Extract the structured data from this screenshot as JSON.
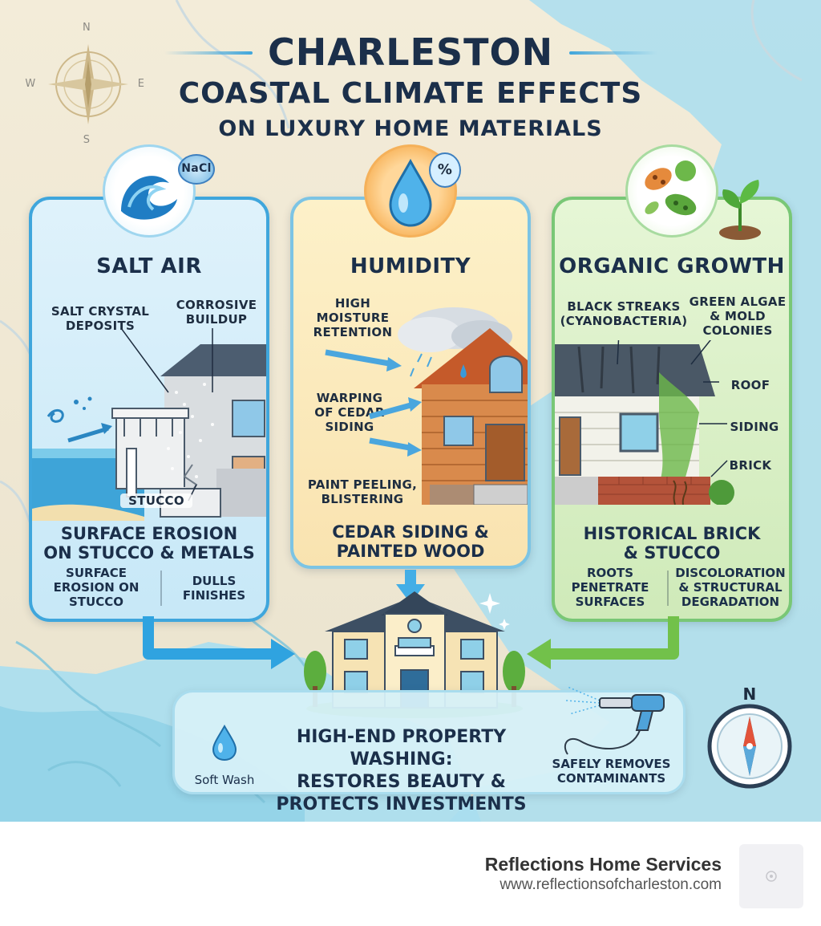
{
  "title": {
    "line1": "CHARLESTON",
    "line2": "COASTAL CLIMATE EFFECTS",
    "line3": "ON LUXURY HOME MATERIALS"
  },
  "compass_rose": {
    "n": "N",
    "s": "S",
    "e": "E",
    "w": "W"
  },
  "cards": {
    "salt": {
      "title": "SALT AIR",
      "icon_text": "NaCl",
      "label_crystal": "SALT CRYSTAL\nDEPOSITS",
      "label_corrosive": "CORROSIVE\nBUILDUP",
      "label_stucco": "STUCCO",
      "bottom": "SURFACE EROSION\nON STUCCO & METALS",
      "sub_left": "SURFACE\nEROSION ON\nSTUCCO",
      "sub_right": "DULLS\nFINISHES"
    },
    "humidity": {
      "title": "HUMIDITY",
      "icon_text": "%",
      "label_moisture": "HIGH\nMOISTURE\nRETENTION",
      "label_warping": "WARPING\nOF CEDAR\nSIDING",
      "label_paint": "PAINT PEELING,\nBLISTERING",
      "bottom": "CEDAR SIDING &\nPAINTED WOOD"
    },
    "organic": {
      "title": "ORGANIC GROWTH",
      "label_black": "BLACK STREAKS\n(CYANOBACTERIA)",
      "label_green": "GREEN ALGAE\n& MOLD\nCOLONIES",
      "label_roof": "ROOF",
      "label_siding": "SIDING",
      "label_brick": "BRICK",
      "bottom": "HISTORICAL BRICK\n& STUCCO",
      "sub_left": "ROOTS\nPENETRATE\nSURFACES",
      "sub_right": "DISCOLORATION\n& STRUCTURAL\nDEGRADATION"
    }
  },
  "solution": {
    "title": "HIGH-END PROPERTY WASHING:\nRESTORES BEAUTY &\nPROTECTS INVESTMENTS",
    "left_label": "Soft Wash",
    "right_label": "SAFELY REMOVES\nCONTAMINANTS"
  },
  "compass": {
    "n": "N"
  },
  "footer": {
    "brand": "Reflections Home Services",
    "url": "www.reflectionsofcharleston.com"
  },
  "colors": {
    "title": "#1b2f4a",
    "salt_accent": "#3fa6dc",
    "humidity_accent": "#f29a2e",
    "organic_accent": "#79c776",
    "water": "#9bd9e8"
  }
}
